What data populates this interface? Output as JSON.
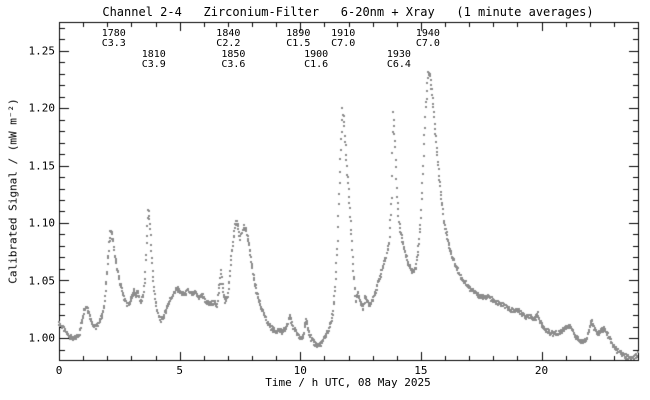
{
  "chart_data": {
    "type": "scatter",
    "title": "Channel 2-4   Zirconium-Filter   6-20nm + Xray   (1 minute averages)",
    "xlabel": "Time / h UTC, 08 May 2025",
    "ylabel": "Calibrated Signal / (mW m⁻²)",
    "xlim": [
      0,
      24
    ],
    "ylim": [
      0.98,
      1.275
    ],
    "grid": false,
    "legend": "none",
    "point_color": "#8c8c8c",
    "frame_color": "#000000",
    "cadence_minutes": 1,
    "x_tick_labels": [
      "0",
      "5",
      "10",
      "15",
      "20"
    ],
    "x_major_ticks": [
      0,
      5,
      10,
      15,
      20
    ],
    "x_minor_step": 1,
    "y_tick_labels": [
      "1.00",
      "1.05",
      "1.10",
      "1.15",
      "1.20",
      "1.25"
    ],
    "y_major_ticks": [
      1.0,
      1.05,
      1.1,
      1.15,
      1.2,
      1.25
    ],
    "y_minor_step": 0.01,
    "flare_annotations": [
      {
        "event": "1780",
        "class": "C3.3",
        "t": 2.27,
        "row": 1
      },
      {
        "event": "1810",
        "class": "C3.9",
        "t": 3.93,
        "row": 2
      },
      {
        "event": "1840",
        "class": "C2.2",
        "t": 7.02,
        "row": 1
      },
      {
        "event": "1850",
        "class": "C3.6",
        "t": 7.23,
        "row": 2
      },
      {
        "event": "1890",
        "class": "C1.5",
        "t": 9.92,
        "row": 1
      },
      {
        "event": "1900",
        "class": "C1.6",
        "t": 10.66,
        "row": 2
      },
      {
        "event": "1910",
        "class": "C7.0",
        "t": 11.78,
        "row": 1
      },
      {
        "event": "1930",
        "class": "C6.4",
        "t": 14.09,
        "row": 2
      },
      {
        "event": "1940",
        "class": "C7.0",
        "t": 15.29,
        "row": 1
      }
    ],
    "series": [
      {
        "name": "Channel 2-4 Zirconium-Filter calibrated signal",
        "keypoints": [
          [
            0.0,
            1.013
          ],
          [
            0.15,
            1.009
          ],
          [
            0.3,
            1.005
          ],
          [
            0.45,
            1.001
          ],
          [
            0.6,
            0.999
          ],
          [
            0.75,
            1.001
          ],
          [
            0.85,
            1.004
          ],
          [
            0.95,
            1.015
          ],
          [
            1.05,
            1.026
          ],
          [
            1.15,
            1.028
          ],
          [
            1.25,
            1.022
          ],
          [
            1.35,
            1.014
          ],
          [
            1.5,
            1.009
          ],
          [
            1.65,
            1.013
          ],
          [
            1.8,
            1.02
          ],
          [
            1.9,
            1.032
          ],
          [
            2.0,
            1.058
          ],
          [
            2.08,
            1.082
          ],
          [
            2.15,
            1.094
          ],
          [
            2.22,
            1.088
          ],
          [
            2.3,
            1.075
          ],
          [
            2.4,
            1.061
          ],
          [
            2.5,
            1.05
          ],
          [
            2.6,
            1.042
          ],
          [
            2.7,
            1.035
          ],
          [
            2.8,
            1.03
          ],
          [
            2.9,
            1.029
          ],
          [
            3.0,
            1.034
          ],
          [
            3.1,
            1.041
          ],
          [
            3.18,
            1.037
          ],
          [
            3.28,
            1.04
          ],
          [
            3.38,
            1.031
          ],
          [
            3.48,
            1.035
          ],
          [
            3.56,
            1.048
          ],
          [
            3.63,
            1.08
          ],
          [
            3.7,
            1.112
          ],
          [
            3.77,
            1.1
          ],
          [
            3.84,
            1.072
          ],
          [
            3.92,
            1.048
          ],
          [
            4.0,
            1.031
          ],
          [
            4.1,
            1.021
          ],
          [
            4.2,
            1.015
          ],
          [
            4.35,
            1.019
          ],
          [
            4.5,
            1.028
          ],
          [
            4.65,
            1.035
          ],
          [
            4.8,
            1.04
          ],
          [
            4.92,
            1.043
          ],
          [
            5.05,
            1.039
          ],
          [
            5.2,
            1.038
          ],
          [
            5.35,
            1.041
          ],
          [
            5.5,
            1.038
          ],
          [
            5.65,
            1.039
          ],
          [
            5.8,
            1.035
          ],
          [
            5.95,
            1.037
          ],
          [
            6.1,
            1.031
          ],
          [
            6.25,
            1.029
          ],
          [
            6.4,
            1.031
          ],
          [
            6.55,
            1.028
          ],
          [
            6.65,
            1.045
          ],
          [
            6.72,
            1.059
          ],
          [
            6.8,
            1.042
          ],
          [
            6.9,
            1.031
          ],
          [
            7.0,
            1.036
          ],
          [
            7.1,
            1.058
          ],
          [
            7.2,
            1.082
          ],
          [
            7.3,
            1.098
          ],
          [
            7.38,
            1.101
          ],
          [
            7.48,
            1.087
          ],
          [
            7.58,
            1.091
          ],
          [
            7.68,
            1.097
          ],
          [
            7.78,
            1.092
          ],
          [
            7.88,
            1.08
          ],
          [
            8.0,
            1.062
          ],
          [
            8.1,
            1.049
          ],
          [
            8.2,
            1.039
          ],
          [
            8.35,
            1.028
          ],
          [
            8.5,
            1.02
          ],
          [
            8.65,
            1.013
          ],
          [
            8.8,
            1.009
          ],
          [
            8.95,
            1.006
          ],
          [
            9.1,
            1.007
          ],
          [
            9.25,
            1.005
          ],
          [
            9.4,
            1.008
          ],
          [
            9.5,
            1.014
          ],
          [
            9.57,
            1.02
          ],
          [
            9.65,
            1.013
          ],
          [
            9.75,
            1.008
          ],
          [
            9.85,
            1.004
          ],
          [
            9.95,
            1.001
          ],
          [
            10.05,
            0.999
          ],
          [
            10.15,
            1.003
          ],
          [
            10.25,
            1.017
          ],
          [
            10.33,
            1.009
          ],
          [
            10.45,
            0.999
          ],
          [
            10.6,
            0.995
          ],
          [
            10.75,
            0.993
          ],
          [
            10.9,
            0.996
          ],
          [
            11.05,
            1.002
          ],
          [
            11.2,
            1.008
          ],
          [
            11.35,
            1.02
          ],
          [
            11.45,
            1.045
          ],
          [
            11.55,
            1.085
          ],
          [
            11.65,
            1.145
          ],
          [
            11.75,
            1.198
          ],
          [
            11.82,
            1.188
          ],
          [
            11.9,
            1.16
          ],
          [
            12.0,
            1.128
          ],
          [
            12.1,
            1.096
          ],
          [
            12.2,
            1.058
          ],
          [
            12.3,
            1.032
          ],
          [
            12.4,
            1.039
          ],
          [
            12.5,
            1.031
          ],
          [
            12.6,
            1.026
          ],
          [
            12.72,
            1.036
          ],
          [
            12.85,
            1.028
          ],
          [
            12.95,
            1.031
          ],
          [
            13.1,
            1.039
          ],
          [
            13.25,
            1.049
          ],
          [
            13.4,
            1.06
          ],
          [
            13.55,
            1.07
          ],
          [
            13.68,
            1.082
          ],
          [
            13.78,
            1.12
          ],
          [
            13.85,
            1.196
          ],
          [
            13.92,
            1.172
          ],
          [
            14.0,
            1.13
          ],
          [
            14.08,
            1.102
          ],
          [
            14.2,
            1.088
          ],
          [
            14.35,
            1.074
          ],
          [
            14.5,
            1.064
          ],
          [
            14.65,
            1.058
          ],
          [
            14.8,
            1.062
          ],
          [
            14.9,
            1.078
          ],
          [
            15.0,
            1.105
          ],
          [
            15.1,
            1.15
          ],
          [
            15.2,
            1.2
          ],
          [
            15.3,
            1.23
          ],
          [
            15.38,
            1.228
          ],
          [
            15.45,
            1.215
          ],
          [
            15.55,
            1.192
          ],
          [
            15.65,
            1.165
          ],
          [
            15.75,
            1.142
          ],
          [
            15.85,
            1.12
          ],
          [
            15.95,
            1.103
          ],
          [
            16.1,
            1.087
          ],
          [
            16.25,
            1.074
          ],
          [
            16.4,
            1.065
          ],
          [
            16.55,
            1.058
          ],
          [
            16.7,
            1.052
          ],
          [
            16.85,
            1.048
          ],
          [
            17.0,
            1.044
          ],
          [
            17.2,
            1.04
          ],
          [
            17.4,
            1.037
          ],
          [
            17.6,
            1.035
          ],
          [
            17.8,
            1.036
          ],
          [
            18.0,
            1.032
          ],
          [
            18.2,
            1.03
          ],
          [
            18.4,
            1.029
          ],
          [
            18.6,
            1.026
          ],
          [
            18.8,
            1.024
          ],
          [
            19.0,
            1.024
          ],
          [
            19.2,
            1.021
          ],
          [
            19.4,
            1.018
          ],
          [
            19.6,
            1.018
          ],
          [
            19.75,
            1.017
          ],
          [
            19.85,
            1.021
          ],
          [
            19.95,
            1.014
          ],
          [
            20.1,
            1.008
          ],
          [
            20.25,
            1.006
          ],
          [
            20.4,
            1.004
          ],
          [
            20.55,
            1.004
          ],
          [
            20.7,
            1.004
          ],
          [
            20.85,
            1.006
          ],
          [
            21.0,
            1.009
          ],
          [
            21.1,
            1.011
          ],
          [
            21.25,
            1.008
          ],
          [
            21.4,
            1.002
          ],
          [
            21.55,
            0.998
          ],
          [
            21.7,
            0.996
          ],
          [
            21.85,
            0.999
          ],
          [
            22.0,
            1.008
          ],
          [
            22.07,
            1.017
          ],
          [
            22.15,
            1.01
          ],
          [
            22.3,
            1.004
          ],
          [
            22.45,
            1.005
          ],
          [
            22.6,
            1.008
          ],
          [
            22.75,
            1.003
          ],
          [
            22.9,
            0.996
          ],
          [
            23.05,
            0.991
          ],
          [
            23.2,
            0.988
          ],
          [
            23.35,
            0.986
          ],
          [
            23.5,
            0.984
          ],
          [
            23.65,
            0.982
          ],
          [
            23.8,
            0.983
          ],
          [
            23.98,
            0.986
          ]
        ]
      }
    ]
  }
}
